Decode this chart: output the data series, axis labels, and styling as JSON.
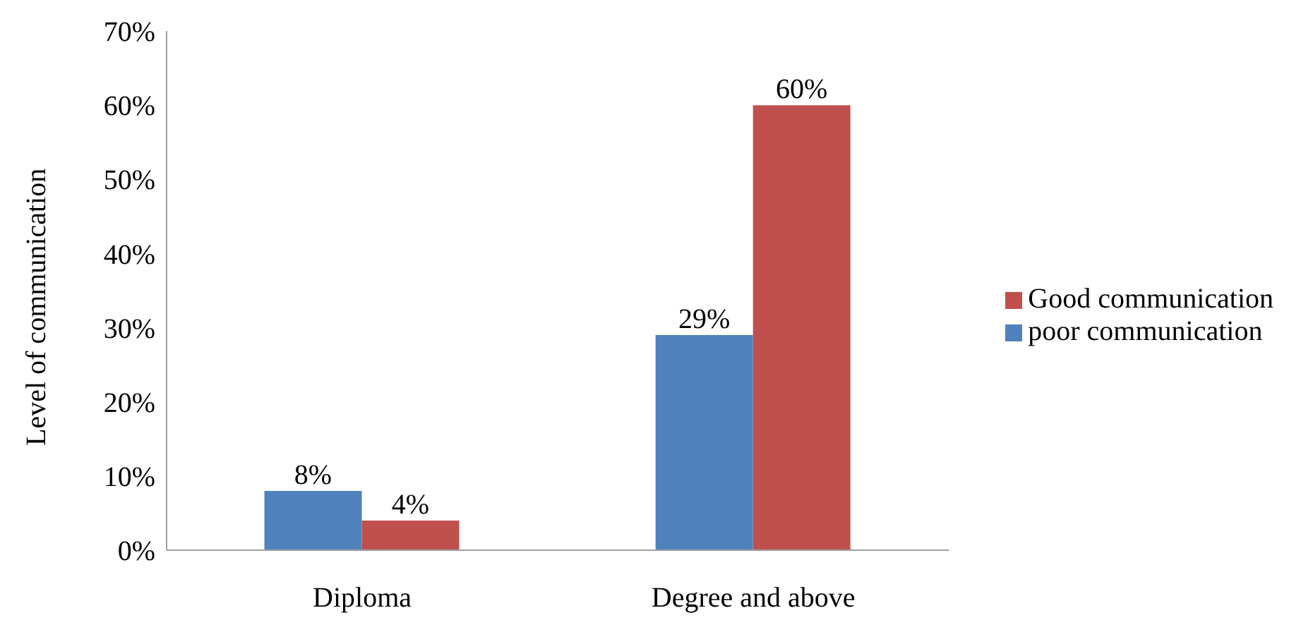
{
  "chart_data": {
    "type": "bar",
    "ylabel": "Level of communication",
    "categories": [
      "Diploma",
      "Degree and above"
    ],
    "series": [
      {
        "name": "poor communication",
        "color": "#4f81bd",
        "values": [
          8,
          29
        ]
      },
      {
        "name": "Good communication",
        "color": "#c0504d",
        "values": [
          4,
          60
        ]
      }
    ],
    "value_labels": [
      [
        "8%",
        "29%"
      ],
      [
        "4%",
        "60%"
      ]
    ],
    "ylim": [
      0,
      70
    ],
    "yticks": [
      {
        "value": 0,
        "label": "0%"
      },
      {
        "value": 10,
        "label": "10%"
      },
      {
        "value": 20,
        "label": "20%"
      },
      {
        "value": 30,
        "label": "30%"
      },
      {
        "value": 40,
        "label": "40%"
      },
      {
        "value": 50,
        "label": "50%"
      },
      {
        "value": 60,
        "label": "60%"
      },
      {
        "value": 70,
        "label": "70%"
      }
    ],
    "grid": false,
    "legend": "right"
  }
}
